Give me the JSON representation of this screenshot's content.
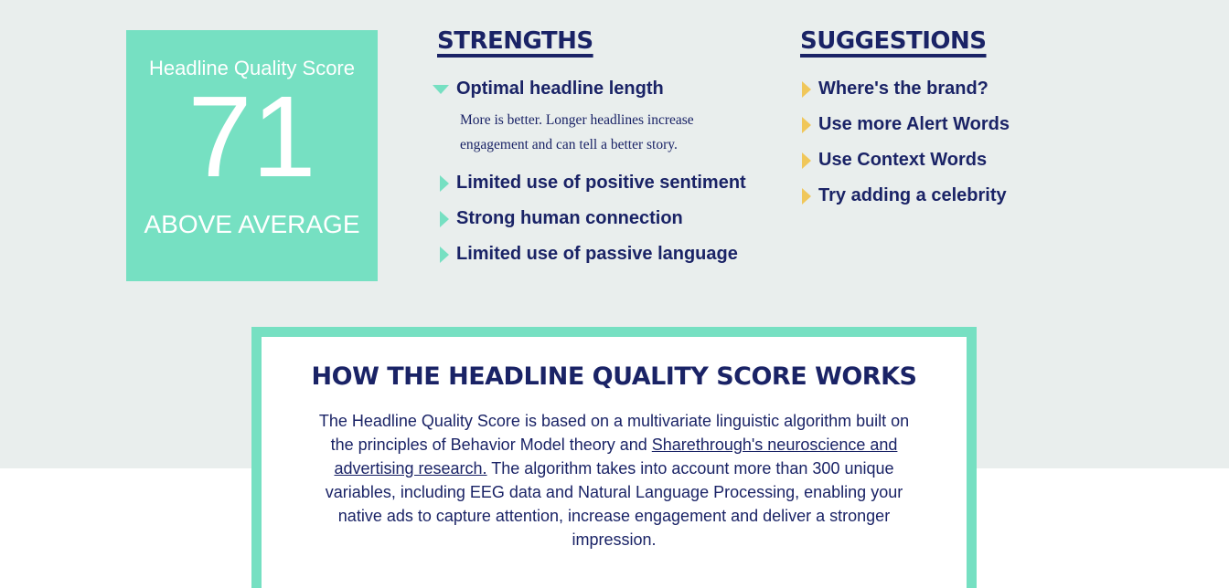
{
  "score": {
    "title": "Headline Quality Score",
    "value": "71",
    "rating": "ABOVE AVERAGE"
  },
  "strengths": {
    "heading": "STRENGTHS",
    "items": [
      {
        "label": "Optimal headline length",
        "expanded": true,
        "description": "More is better. Longer headlines increase engagement and can tell a better story."
      },
      {
        "label": "Limited use of positive sentiment"
      },
      {
        "label": "Strong human connection"
      },
      {
        "label": "Limited use of passive language"
      }
    ]
  },
  "suggestions": {
    "heading": "SUGGESTIONS",
    "items": [
      "Where's the brand?",
      "Use more Alert Words",
      "Use Context Words",
      "Try adding a celebrity"
    ]
  },
  "how": {
    "heading": "HOW THE HEADLINE QUALITY SCORE WORKS",
    "text_before": "The Headline Quality Score is based on a multivariate linguistic algorithm built on the principles of Behavior Model theory and ",
    "link": "Sharethrough's neuroscience and advertising research.",
    "text_after": " The algorithm takes into account more than 300 unique variables, including EEG data and Natural Language Processing, enabling your native ads to capture attention, increase engagement and deliver a stronger impression."
  },
  "colors": {
    "accent": "#76e0c2",
    "navy": "#1a2366",
    "suggestion": "#f0c75a",
    "background": "#e9eeed"
  }
}
